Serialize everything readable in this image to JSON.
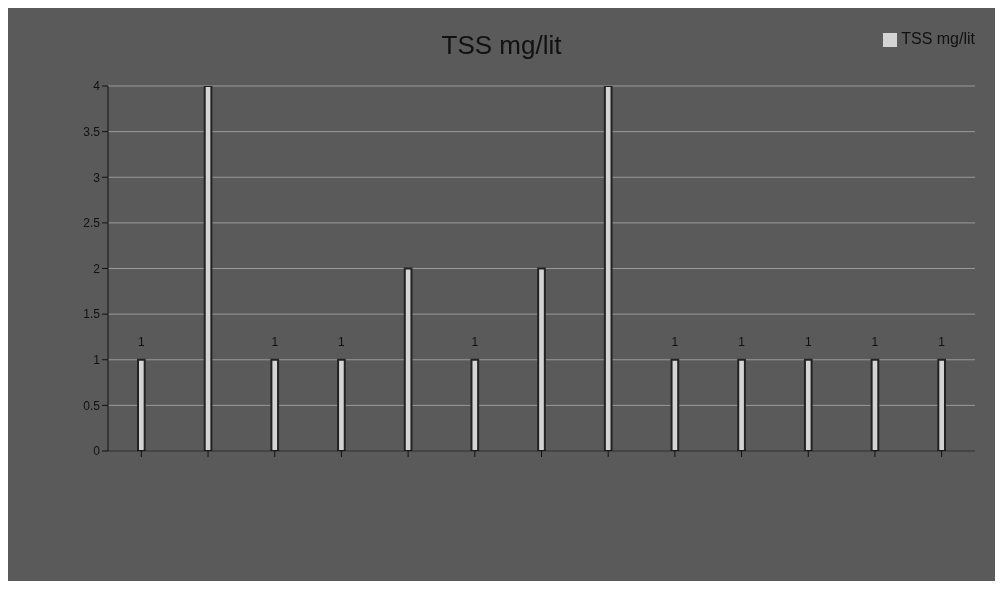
{
  "chart_data": {
    "type": "bar",
    "title": "TSS mg/lit",
    "categories": [
      null,
      null,
      null,
      null,
      null,
      null,
      null,
      null,
      null,
      null,
      null,
      null,
      null
    ],
    "series": [
      {
        "name": "TSS mg/lit",
        "color": "#d4d4d4",
        "values": [
          1,
          4,
          1,
          1,
          2,
          1,
          2,
          4,
          1,
          1,
          1,
          1,
          1
        ],
        "value_labels": [
          "1",
          null,
          "1",
          "1",
          null,
          "1",
          null,
          null,
          "1",
          "1",
          "1",
          "1",
          "1"
        ]
      }
    ],
    "ylim": [
      0,
      4
    ],
    "yticks": [
      0,
      0.5,
      1,
      1.5,
      2,
      2.5,
      3,
      3.5,
      4
    ],
    "grid": "y",
    "legend": "top right"
  }
}
